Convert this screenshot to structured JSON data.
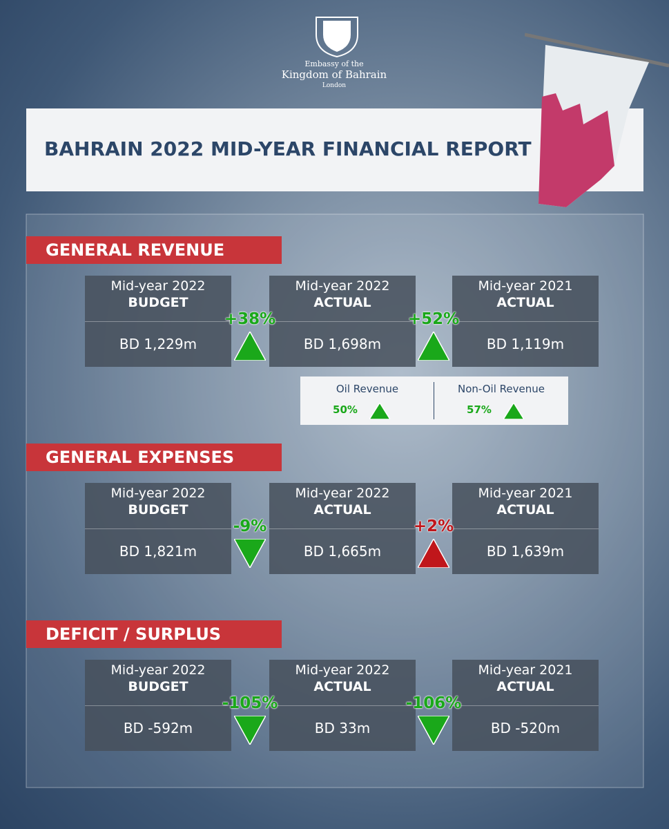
{
  "header": {
    "lines": [
      "Embassy of the",
      "Kingdom of Bahrain",
      "London"
    ]
  },
  "title": "BAHRAIN 2022 MID-YEAR FINANCIAL REPORT",
  "sections": [
    {
      "title": "GENERAL REVENUE",
      "cards": [
        {
          "period": "Mid-year 2022",
          "kind": "BUDGET",
          "value": "BD 1,229m"
        },
        {
          "period": "Mid-year 2022",
          "kind": "ACTUAL",
          "value": "BD 1,698m"
        },
        {
          "period": "Mid-year 2021",
          "kind": "ACTUAL",
          "value": "BD 1,119m"
        }
      ],
      "changes": [
        {
          "text": "+38%",
          "direction": "up",
          "color": "#1aa81a"
        },
        {
          "text": "+52%",
          "direction": "up",
          "color": "#1aa81a"
        }
      ],
      "breakdown": [
        {
          "label": "Oil Revenue",
          "value": "50%",
          "direction": "up",
          "color": "#1aa81a"
        },
        {
          "label": "Non-Oil Revenue",
          "value": "57%",
          "direction": "up",
          "color": "#1aa81a"
        }
      ]
    },
    {
      "title": "GENERAL EXPENSES",
      "cards": [
        {
          "period": "Mid-year 2022",
          "kind": "BUDGET",
          "value": "BD 1,821m"
        },
        {
          "period": "Mid-year 2022",
          "kind": "ACTUAL",
          "value": "BD 1,665m"
        },
        {
          "period": "Mid-year 2021",
          "kind": "ACTUAL",
          "value": "BD 1,639m"
        }
      ],
      "changes": [
        {
          "text": "-9%",
          "direction": "down",
          "color": "#1aa81a"
        },
        {
          "text": "+2%",
          "direction": "up",
          "color": "#c0161b"
        }
      ]
    },
    {
      "title": "DEFICIT / SURPLUS",
      "cards": [
        {
          "period": "Mid-year 2022",
          "kind": "BUDGET",
          "value": "BD -592m"
        },
        {
          "period": "Mid-year 2022",
          "kind": "ACTUAL",
          "value": "BD 33m"
        },
        {
          "period": "Mid-year 2021",
          "kind": "ACTUAL",
          "value": "BD -520m"
        }
      ],
      "changes": [
        {
          "text": "-105%",
          "direction": "down",
          "color": "#1aa81a"
        },
        {
          "text": "-106%",
          "direction": "down",
          "color": "#1aa81a"
        }
      ]
    }
  ]
}
